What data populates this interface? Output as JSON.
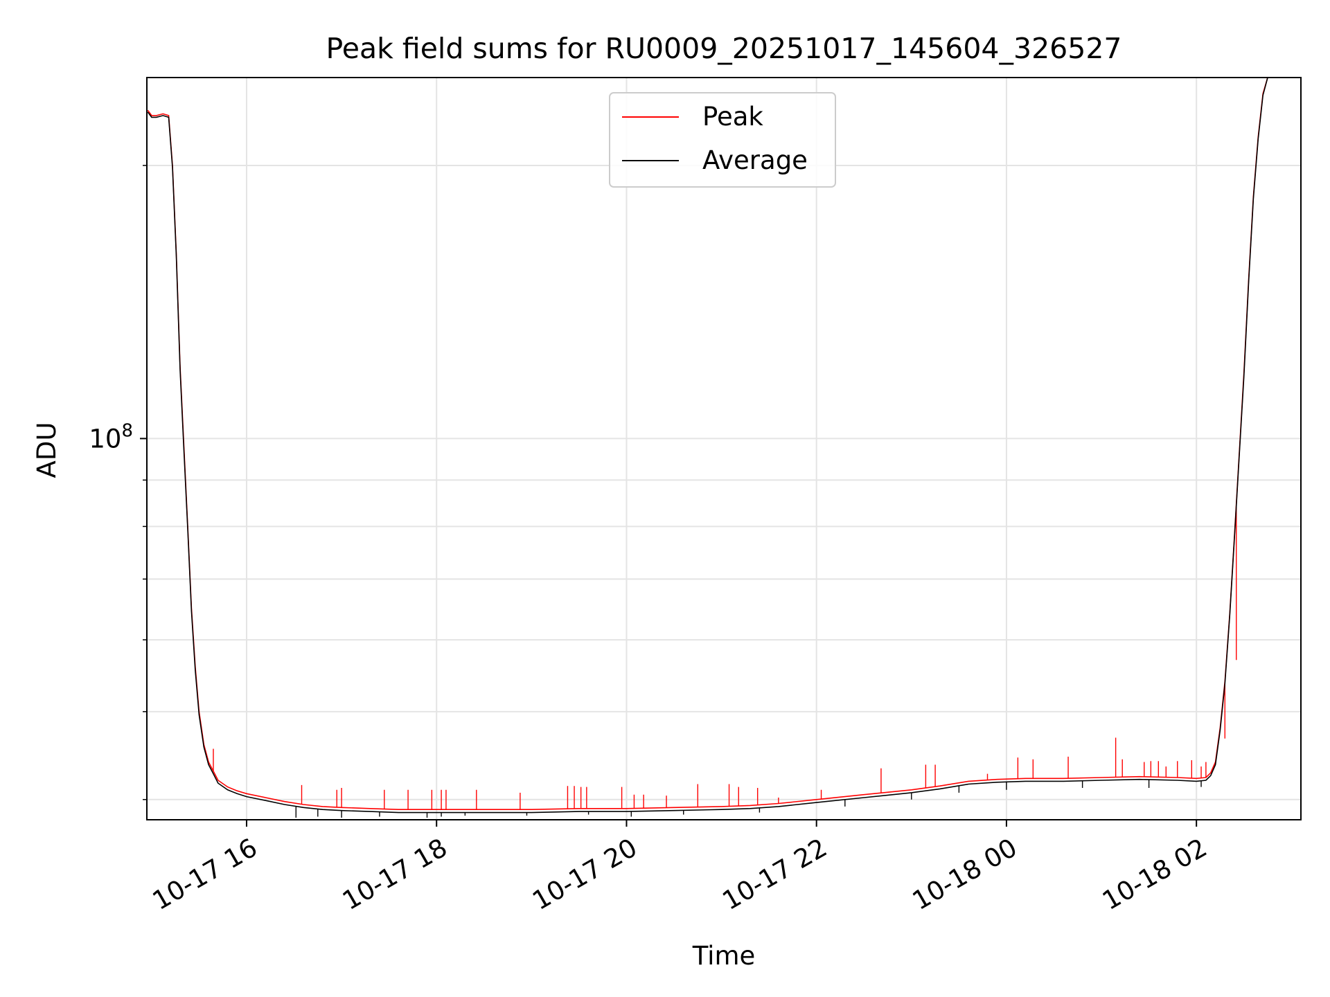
{
  "chart_data": {
    "type": "line",
    "title": "Peak field sums for RU0009_20251017_145604_326527",
    "xlabel": "Time",
    "ylabel": "ADU",
    "x_unit": "hours since 2025-10-17 00:00",
    "xlim": [
      14.95,
      27.1
    ],
    "ylim": [
      38000000,
      250000000
    ],
    "yscale": "log",
    "grid": true,
    "legend_location": "upper center",
    "x_ticks": [
      {
        "value": 16,
        "label": "10-17 16"
      },
      {
        "value": 18,
        "label": "10-17 18"
      },
      {
        "value": 20,
        "label": "10-17 20"
      },
      {
        "value": 22,
        "label": "10-17 22"
      },
      {
        "value": 24,
        "label": "10-18 00"
      },
      {
        "value": 26,
        "label": "10-18 02"
      }
    ],
    "y_major_tick": {
      "value": 100000000,
      "base": "10",
      "exponent": "8"
    },
    "y_minor_ticks": [
      40000000,
      50000000,
      60000000,
      70000000,
      80000000,
      90000000,
      200000000
    ],
    "series": [
      {
        "name": "Peak",
        "color": "#ff0000",
        "x": [
          14.96,
          15.0,
          15.05,
          15.12,
          15.18,
          15.22,
          15.26,
          15.3,
          15.34,
          15.38,
          15.42,
          15.46,
          15.5,
          15.55,
          15.6,
          15.65,
          15.7,
          15.8,
          15.9,
          16.0,
          16.2,
          16.4,
          16.6,
          16.8,
          17.0,
          17.3,
          17.6,
          18.0,
          18.5,
          19.0,
          19.5,
          20.0,
          20.5,
          21.0,
          21.3,
          21.6,
          22.0,
          22.5,
          23.0,
          23.3,
          23.6,
          23.9,
          24.2,
          24.6,
          25.0,
          25.4,
          25.8,
          26.0,
          26.1,
          26.15,
          26.2,
          26.25,
          26.3,
          26.35,
          26.4,
          26.45,
          26.5,
          26.55,
          26.6,
          26.65,
          26.7,
          26.75,
          26.8,
          26.85,
          26.9,
          27.0
        ],
        "y": [
          230000000,
          227000000,
          227000000,
          228000000,
          227000000,
          200000000,
          160000000,
          120000000,
          98000000,
          80000000,
          65000000,
          56000000,
          50000000,
          46000000,
          44000000,
          43000000,
          42000000,
          41300000,
          40900000,
          40600000,
          40200000,
          39800000,
          39500000,
          39300000,
          39200000,
          39100000,
          39000000,
          39000000,
          39000000,
          39000000,
          39100000,
          39100000,
          39200000,
          39300000,
          39400000,
          39600000,
          40000000,
          40500000,
          41000000,
          41400000,
          41900000,
          42100000,
          42200000,
          42200000,
          42300000,
          42400000,
          42300000,
          42200000,
          42300000,
          42800000,
          44000000,
          48000000,
          54000000,
          64000000,
          78000000,
          96000000,
          118000000,
          150000000,
          185000000,
          215000000,
          240000000,
          250000000,
          250000000,
          250000000,
          250000000,
          250000000
        ],
        "spikes": [
          {
            "x": 15.65,
            "y": 45500000
          },
          {
            "x": 16.58,
            "y": 41500000
          },
          {
            "x": 16.95,
            "y": 41000000
          },
          {
            "x": 17.0,
            "y": 41200000
          },
          {
            "x": 17.45,
            "y": 41000000
          },
          {
            "x": 17.7,
            "y": 41000000
          },
          {
            "x": 17.95,
            "y": 41000000
          },
          {
            "x": 18.05,
            "y": 41000000
          },
          {
            "x": 18.1,
            "y": 41000000
          },
          {
            "x": 18.42,
            "y": 41000000
          },
          {
            "x": 18.88,
            "y": 40700000
          },
          {
            "x": 19.38,
            "y": 41400000
          },
          {
            "x": 19.45,
            "y": 41400000
          },
          {
            "x": 19.52,
            "y": 41300000
          },
          {
            "x": 19.58,
            "y": 41300000
          },
          {
            "x": 19.95,
            "y": 41300000
          },
          {
            "x": 20.08,
            "y": 40500000
          },
          {
            "x": 20.18,
            "y": 40500000
          },
          {
            "x": 20.42,
            "y": 40400000
          },
          {
            "x": 20.75,
            "y": 41600000
          },
          {
            "x": 21.08,
            "y": 41600000
          },
          {
            "x": 21.18,
            "y": 41300000
          },
          {
            "x": 21.38,
            "y": 41200000
          },
          {
            "x": 21.6,
            "y": 40200000
          },
          {
            "x": 22.05,
            "y": 41000000
          },
          {
            "x": 22.68,
            "y": 43300000
          },
          {
            "x": 23.15,
            "y": 43700000
          },
          {
            "x": 23.25,
            "y": 43700000
          },
          {
            "x": 23.8,
            "y": 42700000
          },
          {
            "x": 24.12,
            "y": 44500000
          },
          {
            "x": 24.28,
            "y": 44300000
          },
          {
            "x": 24.65,
            "y": 44600000
          },
          {
            "x": 25.15,
            "y": 46800000
          },
          {
            "x": 25.22,
            "y": 44300000
          },
          {
            "x": 25.45,
            "y": 44000000
          },
          {
            "x": 25.52,
            "y": 44100000
          },
          {
            "x": 25.6,
            "y": 44100000
          },
          {
            "x": 25.68,
            "y": 43500000
          },
          {
            "x": 25.8,
            "y": 44100000
          },
          {
            "x": 25.95,
            "y": 44200000
          },
          {
            "x": 26.05,
            "y": 43500000
          },
          {
            "x": 26.1,
            "y": 44000000
          },
          {
            "x": 26.3,
            "y": 46700000
          },
          {
            "x": 26.42,
            "y": 57000000
          }
        ]
      },
      {
        "name": "Average",
        "color": "#000000",
        "x": [
          14.96,
          15.0,
          15.05,
          15.12,
          15.18,
          15.22,
          15.26,
          15.3,
          15.34,
          15.38,
          15.42,
          15.46,
          15.5,
          15.55,
          15.6,
          15.65,
          15.7,
          15.8,
          15.9,
          16.0,
          16.2,
          16.4,
          16.6,
          16.8,
          17.0,
          17.3,
          17.6,
          18.0,
          18.5,
          19.0,
          19.5,
          20.0,
          20.5,
          21.0,
          21.3,
          21.6,
          22.0,
          22.5,
          23.0,
          23.3,
          23.6,
          23.9,
          24.2,
          24.6,
          25.0,
          25.4,
          25.8,
          26.0,
          26.1,
          26.15,
          26.2,
          26.25,
          26.3,
          26.35,
          26.4,
          26.45,
          26.5,
          26.55,
          26.6,
          26.65,
          26.7,
          26.75,
          26.8,
          26.85,
          26.9,
          27.0
        ],
        "y": [
          229000000,
          226000000,
          226000000,
          227000000,
          226000000,
          199000000,
          159000000,
          119000000,
          97000000,
          79500000,
          64500000,
          55500000,
          49600000,
          45700000,
          43700000,
          42700000,
          41700000,
          41000000,
          40600000,
          40300000,
          39900000,
          39500000,
          39200000,
          39000000,
          38900000,
          38800000,
          38700000,
          38700000,
          38700000,
          38700000,
          38800000,
          38800000,
          38900000,
          39000000,
          39100000,
          39300000,
          39700000,
          40200000,
          40700000,
          41100000,
          41600000,
          41800000,
          41900000,
          41900000,
          42000000,
          42100000,
          42000000,
          41900000,
          42000000,
          42500000,
          43700000,
          47700000,
          53700000,
          63700000,
          77600000,
          95500000,
          117000000,
          149000000,
          184000000,
          214000000,
          239000000,
          250000000,
          250000000,
          250000000,
          250000000,
          250000000
        ],
        "dips": [
          {
            "x": 16.52,
            "y": 38200000
          },
          {
            "x": 16.75,
            "y": 38300000
          },
          {
            "x": 17.0,
            "y": 38200000
          },
          {
            "x": 17.4,
            "y": 38300000
          },
          {
            "x": 17.9,
            "y": 38200000
          },
          {
            "x": 18.05,
            "y": 38300000
          },
          {
            "x": 18.3,
            "y": 38400000
          },
          {
            "x": 18.95,
            "y": 38400000
          },
          {
            "x": 19.6,
            "y": 38500000
          },
          {
            "x": 20.05,
            "y": 38300000
          },
          {
            "x": 20.6,
            "y": 38500000
          },
          {
            "x": 21.4,
            "y": 38700000
          },
          {
            "x": 22.3,
            "y": 39300000
          },
          {
            "x": 23.0,
            "y": 40000000
          },
          {
            "x": 23.5,
            "y": 40700000
          },
          {
            "x": 24.0,
            "y": 41000000
          },
          {
            "x": 24.8,
            "y": 41200000
          },
          {
            "x": 25.5,
            "y": 41200000
          },
          {
            "x": 26.05,
            "y": 41300000
          }
        ]
      }
    ]
  }
}
